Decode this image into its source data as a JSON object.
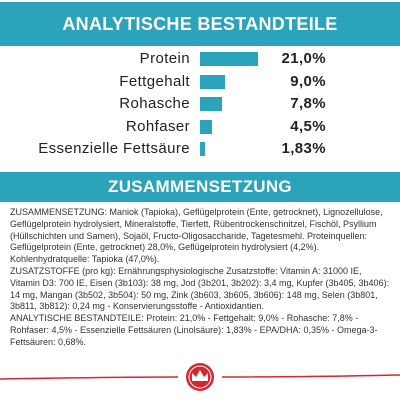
{
  "chart_data": {
    "type": "bar",
    "orientation": "horizontal",
    "title": "ANALYTISCHE BESTANDTEILE",
    "categories": [
      "Protein",
      "Fettgehalt",
      "Rohasche",
      "Rohfaser",
      "Essenzielle Fettsäure"
    ],
    "values": [
      21.0,
      9.0,
      7.8,
      4.5,
      1.83
    ],
    "value_labels": [
      "21,0%",
      "9,0%",
      "7,8%",
      "4,5%",
      "1,83%"
    ],
    "color": "#2ba3bb"
  },
  "composition": {
    "title": "ZUSAMMENSETZUNG",
    "paragraphs": [
      "ZUSAMMENSETZUNG: Maniok (Tapioka), Geflügelprotein (Ente, getrocknet), Lignozellulose, Geflügelprotein hydrolysiert, Mineralstoffe, Tierfett, Rübentrockenschnitzel, Fischöl, Psyllium (Hüllschichten und Samen), Sojaöl, Fructo-Oligosaccharide, Tagetesmehl. Proteinquellen: Geflügelprotein (Ente, getrocknet) 28,0%, Geflügelprotein hydrolysiert (4,2%). Kohlenhydratquelle: Tapioka (47,0%).",
      "ZUSATZSTOFFE (pro kg): Ernährungsphysiologische Zusatzstoffe: Vitamin A: 31000 IE, Vitamin D3: 700 IE, Eisen (3b103): 38 mg, Jod (3b201, 3b202): 3,4 mg, Kupfer (3b405, 3b406): 14 mg, Mangan (3b502, 3b504): 50 mg, Zink (3b603, 3b605, 3b606): 148 mg, Selen (3b801, 3b811, 3b812): 0,24 mg - Konservierungsstoffe - Antioxidantien.",
      "ANALYTISCHE BESTANDTEILE: Protein: 21,0% - Fettgehalt: 9,0% - Rohasche: 7,8% - Rohfaser: 4,5% - Essenzielle Fettsäuren (Linolsäure): 1,83% - EPA/DHA: 0,35% - Omega-3-Fettsäuren: 0,68%."
    ]
  }
}
